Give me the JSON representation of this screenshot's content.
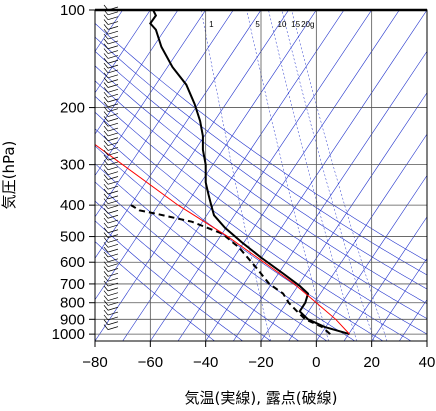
{
  "chart_data": {
    "type": "line",
    "title": "",
    "xlabel": "気温(実線), 露点(破線)",
    "ylabel": "気圧(hPa)",
    "xlim": [
      -80,
      40
    ],
    "ylim": [
      1050,
      100
    ],
    "y_scale": "log",
    "x_ticks": [
      "−80",
      "−60",
      "−40",
      "−20",
      "0",
      "20",
      "40"
    ],
    "x_tick_values": [
      -80,
      -60,
      -40,
      -20,
      0,
      20,
      40
    ],
    "y_ticks": [
      "100",
      "200",
      "300",
      "400",
      "500",
      "600",
      "700",
      "800",
      "900",
      "1000"
    ],
    "y_tick_values": [
      100,
      200,
      300,
      400,
      500,
      600,
      700,
      800,
      900,
      1000
    ],
    "mixing_ratio_labels": [
      "1",
      "5",
      "10",
      "15",
      "20g"
    ],
    "mixing_ratio_values": [
      1,
      5,
      10,
      15,
      20
    ],
    "grid": true,
    "colors": {
      "temperature": "#000000",
      "dewpoint": "#000000",
      "parcel": "#ff0000",
      "background_lines": "#2233cc",
      "grid": "#555555"
    },
    "series": [
      {
        "style": "solid",
        "color": "#000000",
        "points": [
          {
            "t": 12,
            "p": 1000
          },
          {
            "t": 3,
            "p": 950
          },
          {
            "t": -3,
            "p": 900
          },
          {
            "t": -6,
            "p": 850
          },
          {
            "t": -4,
            "p": 800
          },
          {
            "t": -3,
            "p": 750
          },
          {
            "t": -6,
            "p": 710
          },
          {
            "t": -12,
            "p": 650
          },
          {
            "t": -20,
            "p": 580
          },
          {
            "t": -27,
            "p": 520
          },
          {
            "t": -33,
            "p": 470
          },
          {
            "t": -37,
            "p": 430
          },
          {
            "t": -38,
            "p": 400
          },
          {
            "t": -39,
            "p": 370
          },
          {
            "t": -40,
            "p": 340
          },
          {
            "t": -40,
            "p": 300
          },
          {
            "t": -41,
            "p": 270
          },
          {
            "t": -41,
            "p": 245
          },
          {
            "t": -42,
            "p": 220
          },
          {
            "t": -44,
            "p": 195
          },
          {
            "t": -47,
            "p": 170
          },
          {
            "t": -52,
            "p": 150
          },
          {
            "t": -56,
            "p": 130
          },
          {
            "t": -58,
            "p": 115
          },
          {
            "t": -60,
            "p": 110
          },
          {
            "t": -58,
            "p": 104
          },
          {
            "t": -59,
            "p": 100
          }
        ]
      },
      {
        "style": "dashed",
        "color": "#000000",
        "points": [
          {
            "t": 5,
            "p": 1000
          },
          {
            "t": 2,
            "p": 950
          },
          {
            "t": -4,
            "p": 900
          },
          {
            "t": -7,
            "p": 850
          },
          {
            "t": -10,
            "p": 800
          },
          {
            "t": -12,
            "p": 750
          },
          {
            "t": -17,
            "p": 700
          },
          {
            "t": -22,
            "p": 620
          },
          {
            "t": -28,
            "p": 540
          },
          {
            "t": -34,
            "p": 490
          },
          {
            "t": -45,
            "p": 450
          },
          {
            "t": -58,
            "p": 425
          },
          {
            "t": -64,
            "p": 415
          },
          {
            "t": -67,
            "p": 400
          }
        ]
      },
      {
        "style": "solid",
        "color": "#ff0000",
        "points": [
          {
            "t": 12,
            "p": 1000
          },
          {
            "t": 7,
            "p": 900
          },
          {
            "t": 0,
            "p": 800
          },
          {
            "t": -8,
            "p": 700
          },
          {
            "t": -19,
            "p": 600
          },
          {
            "t": -32,
            "p": 500
          },
          {
            "t": -50,
            "p": 400
          },
          {
            "t": -70,
            "p": 300
          },
          {
            "t": -80,
            "p": 260
          }
        ]
      }
    ]
  }
}
